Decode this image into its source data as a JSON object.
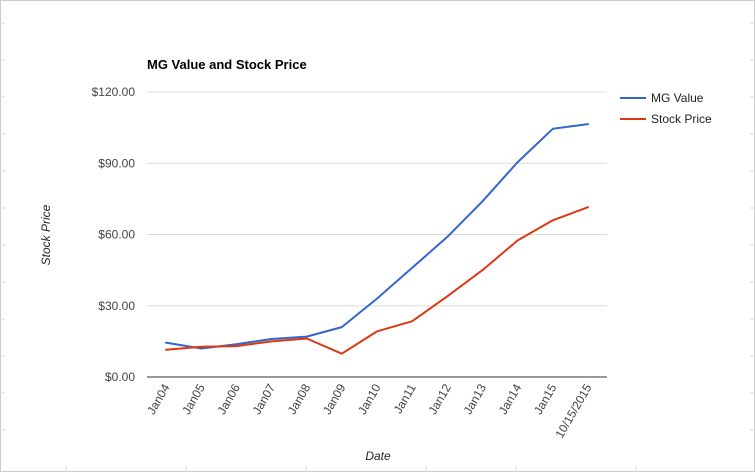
{
  "chart_data": {
    "type": "line",
    "title": "MG Value and Stock Price",
    "xlabel": "Date",
    "ylabel": "Stock Price",
    "categories": [
      "Jan04",
      "Jan05",
      "Jan06",
      "Jan07",
      "Jan08",
      "Jan09",
      "Jan10",
      "Jan11",
      "Jan12",
      "Jan13",
      "Jan14",
      "Jan15",
      "10/15/2015"
    ],
    "yticks": [
      "$0.00",
      "$30.00",
      "$60.00",
      "$90.00",
      "$120.00"
    ],
    "ylim": [
      0,
      120
    ],
    "grid": true,
    "legend_position": "right",
    "series": [
      {
        "name": "MG Value",
        "color": "#3366cc",
        "values": [
          14.5,
          12.0,
          13.8,
          16.0,
          17.0,
          21.0,
          33.0,
          46.0,
          59.0,
          74.0,
          90.5,
          104.5,
          106.5
        ]
      },
      {
        "name": "Stock Price",
        "color": "#dc3912",
        "values": [
          11.5,
          12.7,
          13.0,
          15.0,
          16.2,
          9.8,
          19.2,
          23.5,
          34.0,
          45.0,
          57.5,
          66.0,
          71.5
        ]
      }
    ]
  }
}
